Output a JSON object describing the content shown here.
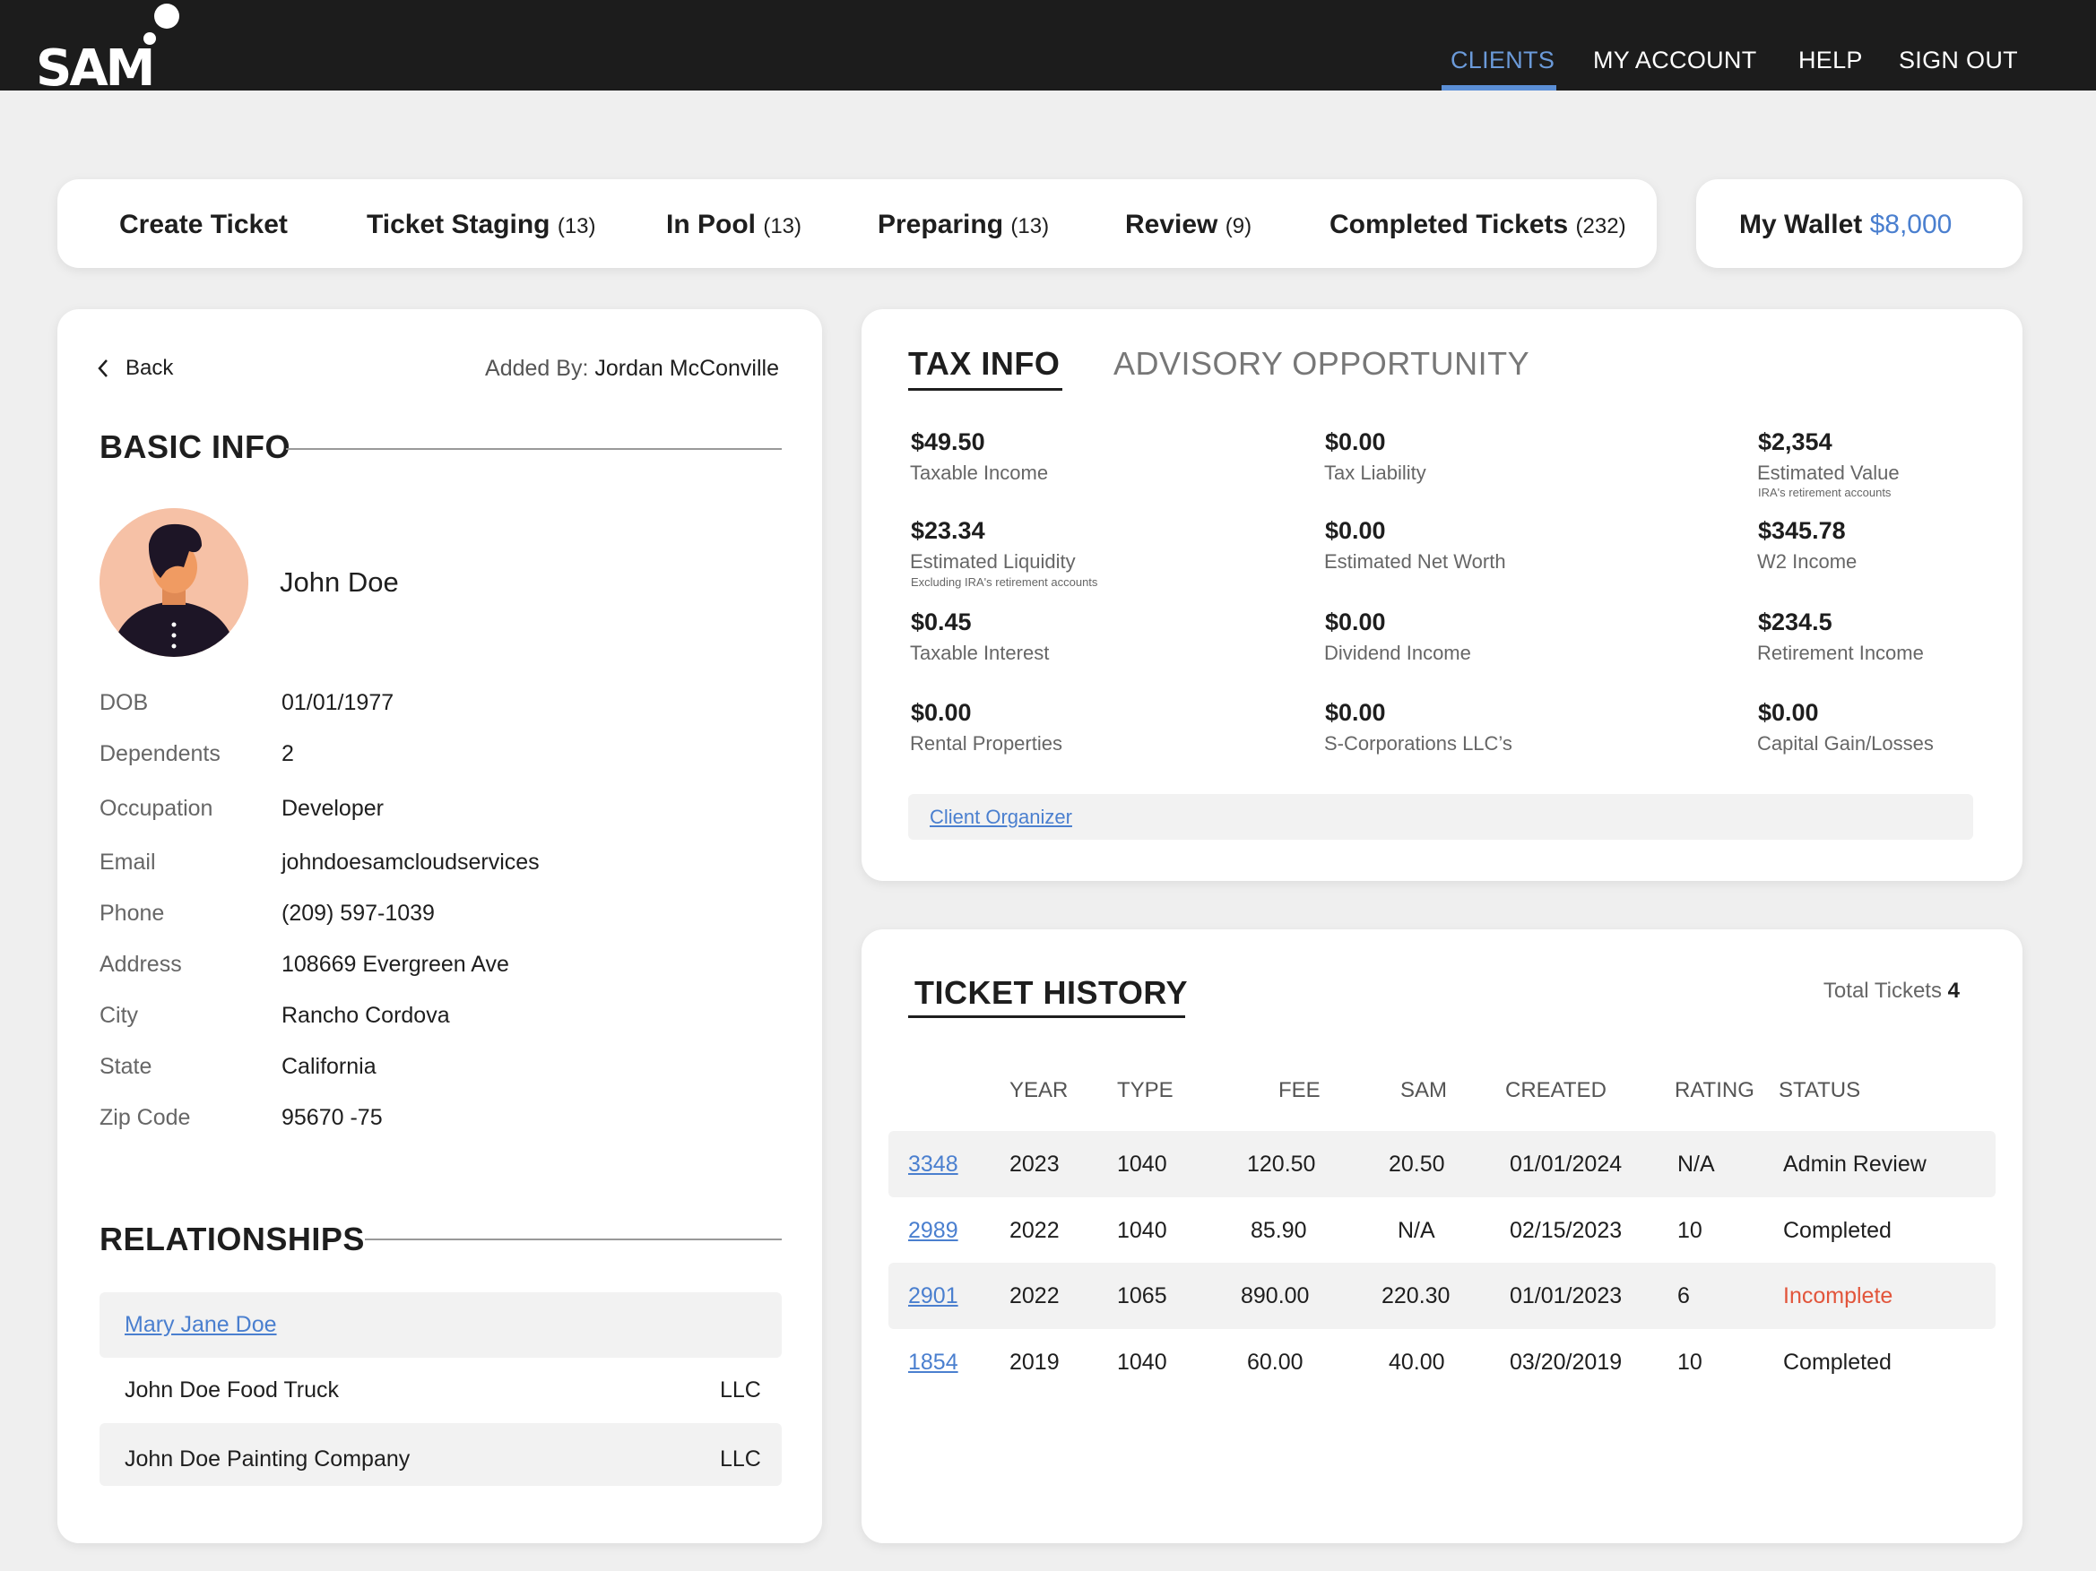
{
  "app": {
    "logo_text": "SAM",
    "nav": [
      {
        "label": "CLIENTS",
        "active": true
      },
      {
        "label": "MY ACCOUNT",
        "active": false
      },
      {
        "label": "HELP",
        "active": false
      },
      {
        "label": "SIGN OUT",
        "active": false
      }
    ]
  },
  "tabs": [
    {
      "label": "Create Ticket",
      "count": ""
    },
    {
      "label": "Ticket Staging",
      "count": "(13)"
    },
    {
      "label": "In Pool",
      "count": "(13)"
    },
    {
      "label": "Preparing",
      "count": "(13)"
    },
    {
      "label": "Review",
      "count": "(9)"
    },
    {
      "label": "Completed Tickets",
      "count": "(232)"
    }
  ],
  "wallet": {
    "label": "My Wallet",
    "amount": "$8,000"
  },
  "client": {
    "back_label": "Back",
    "added_by_label": "Added By:",
    "added_by": "Jordan McConville",
    "basic_info_title": "BASIC INFO",
    "name": "John Doe",
    "fields": [
      {
        "label": "DOB",
        "value": "01/01/1977"
      },
      {
        "label": "Dependents",
        "value": "2"
      },
      {
        "label": "Occupation",
        "value": "Developer"
      },
      {
        "label": "Email",
        "value": "johndoesamcloudservices"
      },
      {
        "label": "Phone",
        "value": "(209) 597-1039"
      },
      {
        "label": "Address",
        "value": "108669 Evergreen Ave"
      },
      {
        "label": "City",
        "value": "Rancho Cordova"
      },
      {
        "label": "State",
        "value": "California"
      },
      {
        "label": "Zip Code",
        "value": "95670 -75"
      }
    ],
    "relationships_title": "RELATIONSHIPS",
    "relationships": [
      {
        "name": "Mary Jane Doe",
        "type": ""
      },
      {
        "name": "John Doe Food Truck",
        "type": "LLC"
      },
      {
        "name": "John Doe Painting Company",
        "type": "LLC"
      }
    ]
  },
  "tax": {
    "tab_active": "TAX INFO",
    "tab_inactive": "ADVISORY OPPORTUNITY",
    "metrics": [
      {
        "value": "$49.50",
        "label": "Taxable Income",
        "note": ""
      },
      {
        "value": "$0.00",
        "label": "Tax Liability",
        "note": ""
      },
      {
        "value": "$2,354",
        "label": "Estimated Value",
        "note": "IRA's retirement accounts"
      },
      {
        "value": "$23.34",
        "label": "Estimated Liquidity",
        "note": "Excluding IRA's retirement accounts"
      },
      {
        "value": "$0.00",
        "label": "Estimated Net Worth",
        "note": ""
      },
      {
        "value": "$345.78",
        "label": "W2 Income",
        "note": ""
      },
      {
        "value": "$0.45",
        "label": "Taxable Interest",
        "note": ""
      },
      {
        "value": "$0.00",
        "label": "Dividend Income",
        "note": ""
      },
      {
        "value": "$234.5",
        "label": "Retirement Income",
        "note": ""
      },
      {
        "value": "$0.00",
        "label": "Rental Properties",
        "note": ""
      },
      {
        "value": "$0.00",
        "label": "S-Corporations LLC’s",
        "note": ""
      },
      {
        "value": "$0.00",
        "label": "Capital Gain/Losses",
        "note": ""
      }
    ],
    "organizer_link": "Client Organizer"
  },
  "tickets": {
    "title": "TICKET HISTORY",
    "total_label": "Total Tickets",
    "total": "4",
    "columns": [
      "YEAR",
      "TYPE",
      "FEE",
      "SAM",
      "CREATED",
      "RATING",
      "STATUS"
    ],
    "rows": [
      {
        "id": "3348",
        "year": "2023",
        "type": "1040",
        "fee": "120.50",
        "sam": "20.50",
        "created": "01/01/2024",
        "rating": "N/A",
        "status": "Admin Review"
      },
      {
        "id": "2989",
        "year": "2022",
        "type": "1040",
        "fee": "85.90",
        "sam": "N/A",
        "created": "02/15/2023",
        "rating": "10",
        "status": "Completed"
      },
      {
        "id": "2901",
        "year": "2022",
        "type": "1065",
        "fee": "890.00",
        "sam": "220.30",
        "created": "01/01/2023",
        "rating": "6",
        "status": "Incomplete"
      },
      {
        "id": "1854",
        "year": "2019",
        "type": "1040",
        "fee": "60.00",
        "sam": "40.00",
        "created": "03/20/2019",
        "rating": "10",
        "status": "Completed"
      }
    ]
  },
  "colors": {
    "accent": "#4a7fcf",
    "incomplete": "#e2553b",
    "topbar": "#1c1c1c"
  }
}
